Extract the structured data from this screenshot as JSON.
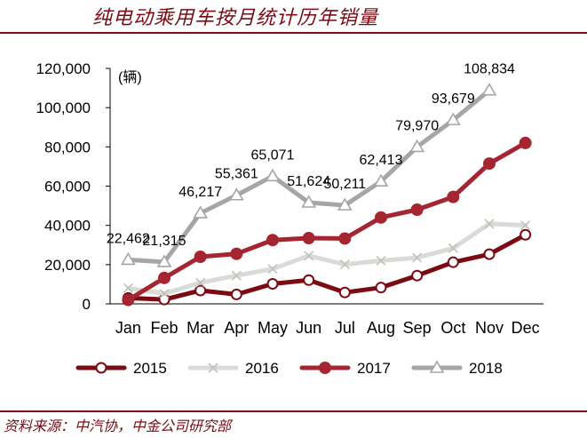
{
  "title": "纯电动乘用车按月统计历年销量",
  "source": "资料来源：中汽协，中金公司研究部",
  "chart_data": {
    "type": "line",
    "unit_label": "(辆)",
    "categories": [
      "Jan",
      "Feb",
      "Mar",
      "Apr",
      "May",
      "Jun",
      "Jul",
      "Aug",
      "Sep",
      "Oct",
      "Nov",
      "Dec"
    ],
    "ylim": [
      0,
      120000
    ],
    "yticks": [
      0,
      20000,
      40000,
      60000,
      80000,
      100000,
      120000
    ],
    "ytick_labels": [
      "0",
      "20,000",
      "40,000",
      "60,000",
      "80,000",
      "100,000",
      "120,000"
    ],
    "grid": false,
    "legend_position": "bottom",
    "series": [
      {
        "name": "2015",
        "color": "#7b0a12",
        "marker": "circle-open",
        "values": [
          3000,
          2200,
          6800,
          4800,
          10200,
          12100,
          5800,
          8300,
          14400,
          21200,
          25300,
          35200
        ]
      },
      {
        "name": "2016",
        "color": "#d9dcd6",
        "marker": "cross",
        "values": [
          8000,
          5200,
          10800,
          14400,
          17800,
          24500,
          20100,
          22000,
          23500,
          28400,
          40800,
          40000
        ]
      },
      {
        "name": "2017",
        "color": "#a52530",
        "marker": "circle-filled",
        "values": [
          2000,
          13200,
          24000,
          25500,
          32500,
          33500,
          33300,
          44000,
          48000,
          54500,
          71500,
          82000
        ]
      },
      {
        "name": "2018",
        "color": "#a6a6a6",
        "marker": "triangle-open",
        "values": [
          22462,
          21315,
          46217,
          55361,
          65071,
          51624,
          50211,
          62413,
          79970,
          93679,
          108834,
          null
        ],
        "labels": [
          "22,462",
          "21,315",
          "46,217",
          "55,361",
          "65,071",
          "51,624",
          "50,211",
          "62,413",
          "79,970",
          "93,679",
          "108,834",
          ""
        ]
      }
    ]
  }
}
